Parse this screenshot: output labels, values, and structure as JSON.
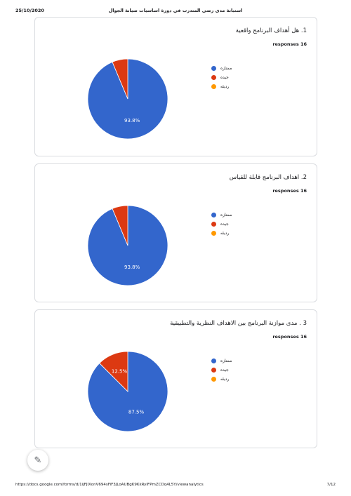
{
  "header": {
    "date": "25/10/2020",
    "title": "استبانة مدى رضى المتدرب في دورة اساسيات صيانة الجوال"
  },
  "footer": {
    "url": "https://docs.google.com/forms/d/1ijFJIXonV694sFiF3JLoAUBgK9KkRyIFPmZCDq4L5Y/viewanalytics",
    "page": "7/12"
  },
  "colors": {
    "blue": "#3366cc",
    "red": "#dc3912",
    "orange": "#ff9900"
  },
  "edit_button": {
    "icon": "pencil-icon"
  },
  "questions": [
    {
      "title": "1. هل أهداف البرنامج واقعية",
      "responses": "16 responses",
      "legend": [
        "ممتازه",
        "جيده",
        "رديئه"
      ]
    },
    {
      "title": "2. اهداف البرنامج قابلة للقياس",
      "responses": "16 responses",
      "legend": [
        "ممتازه",
        "جيده",
        "رديئه"
      ]
    },
    {
      "title": "3 . مدى موازنة البرنامج بين الاهداف النظرية والتطبيقية",
      "responses": "16 responses",
      "legend": [
        "ممتازه",
        "جيده",
        "رديئه"
      ]
    }
  ],
  "chart_data": [
    {
      "type": "pie",
      "categories": [
        "ممتازه",
        "جيده",
        "رديئه"
      ],
      "values": [
        93.8,
        6.3,
        0
      ],
      "labels": [
        "93.8%",
        "",
        ""
      ],
      "legend": "right"
    },
    {
      "type": "pie",
      "categories": [
        "ممتازه",
        "جيده",
        "رديئه"
      ],
      "values": [
        93.8,
        6.3,
        0
      ],
      "labels": [
        "93.8%",
        "",
        ""
      ],
      "legend": "right"
    },
    {
      "type": "pie",
      "categories": [
        "ممتازه",
        "جيده",
        "رديئه"
      ],
      "values": [
        87.5,
        12.5,
        0
      ],
      "labels": [
        "87.5%",
        "12.5%",
        ""
      ],
      "legend": "right"
    }
  ]
}
